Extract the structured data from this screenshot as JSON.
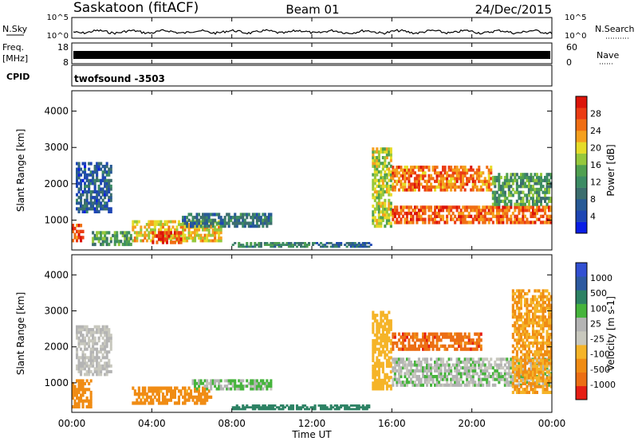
{
  "header": {
    "station": "Saskatoon (fitACF)",
    "beam": "Beam 01",
    "date": "24/Dec/2015"
  },
  "panels": {
    "noise": {
      "left_label": "N.Sky",
      "right_label": "N.Search",
      "left_ticks": [
        "10^5",
        "10^0"
      ],
      "right_ticks": [
        "10^5",
        "10^0"
      ]
    },
    "freq": {
      "left_label": "Freq.",
      "left_unit": "[MHz]",
      "left_ticks": [
        "18",
        "8"
      ],
      "right_label": "Nave",
      "right_ticks": [
        "60",
        "0"
      ]
    },
    "cpid": {
      "label": "CPID",
      "program": "twofsound -3503"
    },
    "power": {
      "ylabel": "Slant Range [km]",
      "cbar_label": "Power [dB]",
      "cbar_ticks": [
        "28",
        "24",
        "20",
        "16",
        "12",
        "8",
        "4"
      ]
    },
    "velocity": {
      "ylabel": "Slant Range [km]",
      "cbar_label": "Velocity [m s-1]",
      "cbar_ticks": [
        "1000",
        "500",
        "100",
        "25",
        "-25",
        "-100",
        "-500",
        "-1000"
      ]
    }
  },
  "colors": {
    "power_scale": [
      "#0a1ee6",
      "#1e46b4",
      "#285a96",
      "#3c6e6e",
      "#3c8c64",
      "#50a050",
      "#96c83c",
      "#e6dc28",
      "#f5a01e",
      "#f06e14",
      "#eb3c14",
      "#dc140a"
    ],
    "velocity_scale": [
      "#3250d2",
      "#2d5aa0",
      "#2d8264",
      "#46b43c",
      "#b4b4b4",
      "#c8c8be",
      "#f5b428",
      "#f08c14",
      "#ec6e14",
      "#e61e14"
    ]
  },
  "chart_data": {
    "type": "heatmap",
    "x": {
      "label": "Time UT",
      "ticks": [
        "00:00",
        "04:00",
        "08:00",
        "12:00",
        "16:00",
        "20:00",
        "00:00"
      ],
      "range_hours": [
        0,
        24
      ]
    },
    "y": {
      "label": "Slant Range [km]",
      "ticks": [
        "1000",
        "2000",
        "3000",
        "4000"
      ],
      "range_km": [
        180,
        4560
      ]
    },
    "power_regions": [
      {
        "t": [
          0.0,
          0.6
        ],
        "r": [
          400,
          900
        ],
        "dB": 26
      },
      {
        "t": [
          0.2,
          2.0
        ],
        "r": [
          1200,
          2600
        ],
        "dB": 8
      },
      {
        "t": [
          1.0,
          3.0
        ],
        "r": [
          300,
          700
        ],
        "dB": 14
      },
      {
        "t": [
          3.0,
          7.5
        ],
        "r": [
          400,
          1000
        ],
        "dB": 20
      },
      {
        "t": [
          4.0,
          5.5
        ],
        "r": [
          350,
          700
        ],
        "dB": 27
      },
      {
        "t": [
          5.5,
          10.0
        ],
        "r": [
          800,
          1200
        ],
        "dB": 10
      },
      {
        "t": [
          8.0,
          12.0
        ],
        "r": [
          250,
          400
        ],
        "dB": 12
      },
      {
        "t": [
          12.0,
          15.0
        ],
        "r": [
          250,
          400
        ],
        "dB": 9
      },
      {
        "t": [
          15.0,
          16.0
        ],
        "r": [
          800,
          3000
        ],
        "dB": 18
      },
      {
        "t": [
          16.0,
          21.0
        ],
        "r": [
          1800,
          2500
        ],
        "dB": 24
      },
      {
        "t": [
          16.0,
          24.0
        ],
        "r": [
          900,
          1400
        ],
        "dB": 25
      },
      {
        "t": [
          21.0,
          24.0
        ],
        "r": [
          1400,
          2300
        ],
        "dB": 14
      }
    ],
    "velocity_regions": [
      {
        "t": [
          0.0,
          1.0
        ],
        "r": [
          300,
          1100
        ],
        "v": -200
      },
      {
        "t": [
          0.2,
          2.0
        ],
        "r": [
          1200,
          2600
        ],
        "v": 0
      },
      {
        "t": [
          3.0,
          7.0
        ],
        "r": [
          400,
          900
        ],
        "v": -150
      },
      {
        "t": [
          6.0,
          10.0
        ],
        "r": [
          800,
          1100
        ],
        "v": 10
      },
      {
        "t": [
          8.0,
          15.0
        ],
        "r": [
          250,
          400
        ],
        "v": 60
      },
      {
        "t": [
          15.0,
          16.0
        ],
        "r": [
          800,
          3000
        ],
        "v": -60
      },
      {
        "t": [
          16.0,
          20.5
        ],
        "r": [
          1900,
          2400
        ],
        "v": -400
      },
      {
        "t": [
          16.0,
          24.0
        ],
        "r": [
          900,
          1700
        ],
        "v": 5
      },
      {
        "t": [
          22.0,
          24.0
        ],
        "r": [
          700,
          3600
        ],
        "v": -100
      }
    ]
  }
}
